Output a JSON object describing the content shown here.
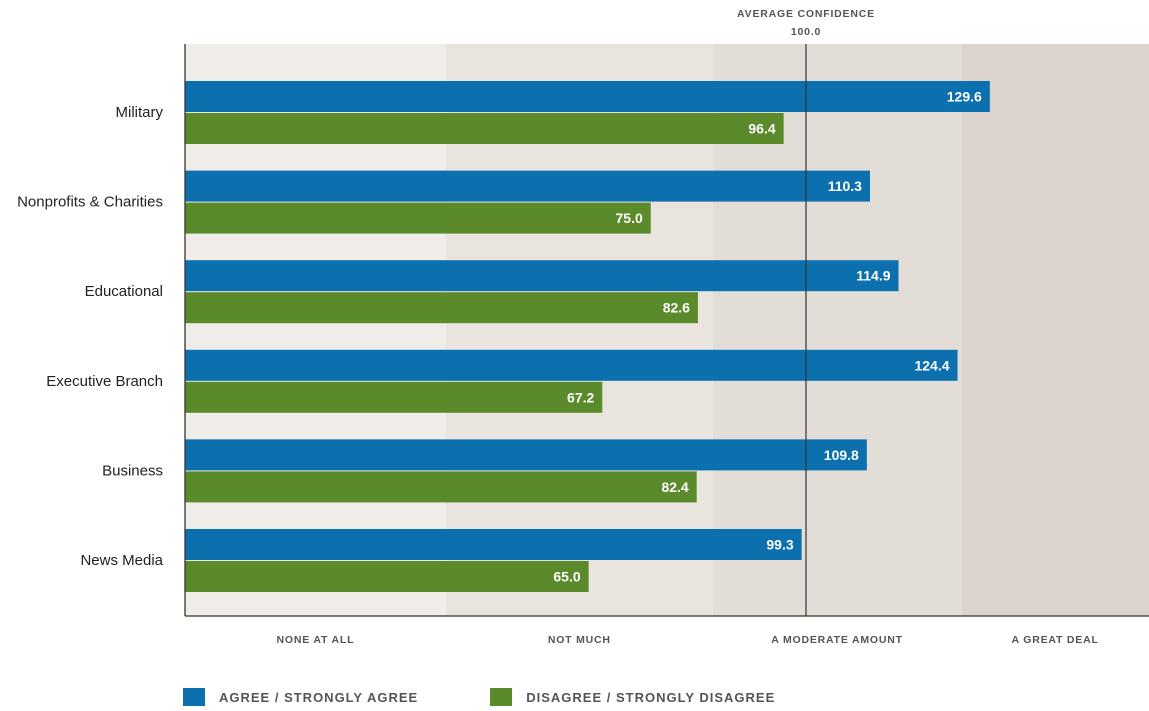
{
  "chart_data": {
    "type": "bar",
    "orientation": "horizontal",
    "categories": [
      "Military",
      "Nonprofits & Charities",
      "Educational",
      "Executive Branch",
      "Business",
      "News Media"
    ],
    "series": [
      {
        "name": "AGREE / STRONGLY AGREE",
        "color": "#0b70ad",
        "values": [
          129.6,
          110.3,
          114.9,
          124.4,
          109.8,
          99.3
        ]
      },
      {
        "name": "DISAGREE / STRONGLY DISAGREE",
        "color": "#5b8a2a",
        "values": [
          96.4,
          75.0,
          82.6,
          67.2,
          82.4,
          65.0
        ]
      }
    ],
    "value_labels": [
      [
        "129.6",
        "110.3",
        "114.9",
        "124.4",
        "109.8",
        "99.3"
      ],
      [
        "96.4",
        "75.0",
        "82.6",
        "67.2",
        "82.4",
        "65.0"
      ]
    ],
    "xlim": [
      0,
      170
    ],
    "bands": [
      {
        "label": "NONE AT ALL",
        "from": 0,
        "to": 42,
        "color": "#f0ece7"
      },
      {
        "label": "NOT MUCH",
        "from": 42,
        "to": 85,
        "color": "#e9e4de"
      },
      {
        "label": "A MODERATE AMOUNT",
        "from": 85,
        "to": 125,
        "color": "#e3ddd7"
      },
      {
        "label": "A GREAT DEAL",
        "from": 125,
        "to": 170,
        "color": "#dcd3cd"
      }
    ],
    "reference_line": {
      "value": 100.0,
      "label": "AVERAGE CONFIDENCE",
      "value_label": "100.0"
    },
    "legend_position": "bottom-left",
    "grid": false
  }
}
